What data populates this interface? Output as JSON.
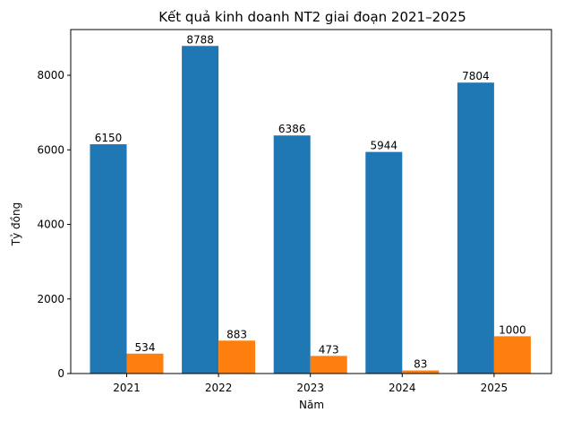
{
  "chart_data": {
    "type": "bar",
    "title": "Kết quả kinh doanh NT2 giai đoạn 2021–2025",
    "xlabel": "Năm",
    "ylabel": "Tỷ đồng",
    "categories": [
      "2021",
      "2022",
      "2023",
      "2024",
      "2025"
    ],
    "series": [
      {
        "values": [
          6150,
          8788,
          6386,
          5944,
          7804
        ],
        "color": "#1f77b4"
      },
      {
        "values": [
          534,
          883,
          473,
          83,
          1000
        ],
        "color": "#ff7f0e"
      }
    ],
    "ylim": [
      0,
      9227
    ],
    "yticks": [
      0,
      2000,
      4000,
      6000,
      8000
    ],
    "grid": false,
    "legend": "none"
  }
}
